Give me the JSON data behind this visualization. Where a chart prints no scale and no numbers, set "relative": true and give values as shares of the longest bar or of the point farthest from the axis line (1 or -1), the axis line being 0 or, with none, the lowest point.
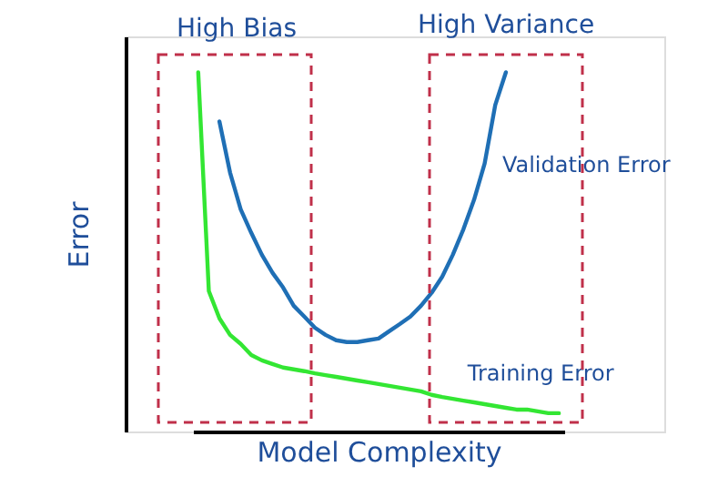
{
  "chart_data": {
    "type": "line",
    "relative": true,
    "xlabel": "Model Complexity",
    "ylabel": "Error",
    "legend": false,
    "marker": "none",
    "line_style": "solid",
    "categories": [
      null,
      null,
      null,
      null,
      null,
      null,
      null,
      null,
      null,
      null,
      null,
      null,
      null,
      null,
      null,
      null,
      null,
      null,
      null,
      null,
      null,
      null,
      null,
      null,
      null,
      null,
      null,
      null,
      null,
      null,
      null,
      null,
      null,
      null,
      null
    ],
    "series": [
      {
        "name": "Validation Error",
        "color": "#1f6fb5",
        "values": [
          null,
          null,
          0.863,
          0.721,
          0.619,
          0.553,
          0.492,
          0.442,
          0.401,
          0.35,
          0.32,
          0.289,
          0.269,
          0.254,
          0.249,
          0.249,
          0.254,
          0.259,
          0.279,
          0.299,
          0.32,
          0.35,
          0.386,
          0.431,
          0.492,
          0.563,
          0.645,
          0.746,
          0.909,
          1.0,
          null,
          null,
          null,
          null,
          null
        ]
      },
      {
        "name": "Training Error",
        "color": "#33e633",
        "values": [
          1.0,
          0.391,
          0.315,
          0.269,
          0.244,
          0.213,
          0.198,
          0.188,
          0.178,
          0.173,
          0.168,
          0.162,
          0.157,
          0.152,
          0.147,
          0.142,
          0.137,
          0.132,
          0.127,
          0.122,
          0.117,
          0.112,
          0.102,
          0.096,
          0.091,
          0.086,
          0.081,
          0.076,
          0.071,
          0.066,
          0.061,
          0.061,
          0.056,
          0.051,
          0.051
        ]
      }
    ],
    "annotations": [
      "High Bias",
      "High Variance"
    ]
  }
}
